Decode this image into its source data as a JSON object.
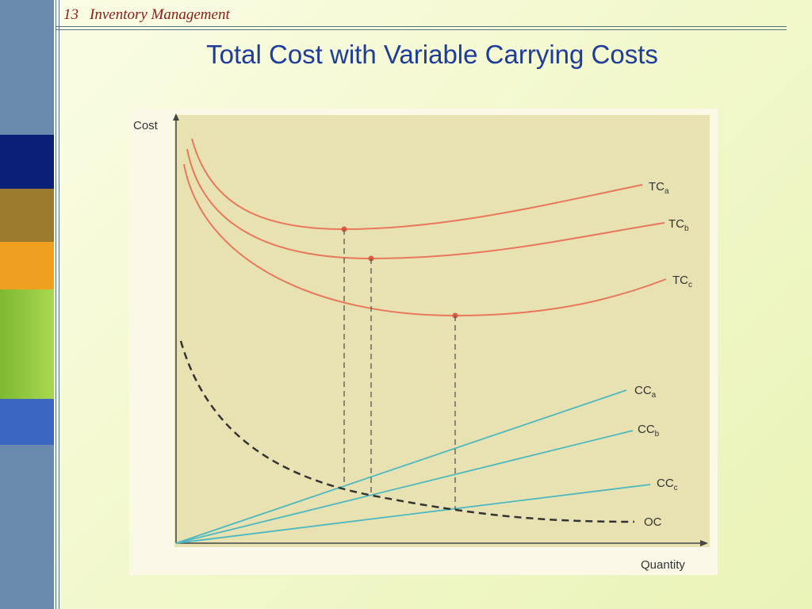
{
  "header": {
    "number": "13",
    "section": "Inventory Management"
  },
  "title": "Total Cost with Variable Carrying Costs",
  "figure": {
    "y_axis_label": "Cost",
    "x_axis_label": "Quantity",
    "curves": [
      {
        "main": "TC",
        "sub": "a"
      },
      {
        "main": "TC",
        "sub": "b"
      },
      {
        "main": "TC",
        "sub": "c"
      },
      {
        "main": "CC",
        "sub": "a"
      },
      {
        "main": "CC",
        "sub": "b"
      },
      {
        "main": "CC",
        "sub": "c"
      },
      {
        "main": "OC"
      }
    ]
  }
}
